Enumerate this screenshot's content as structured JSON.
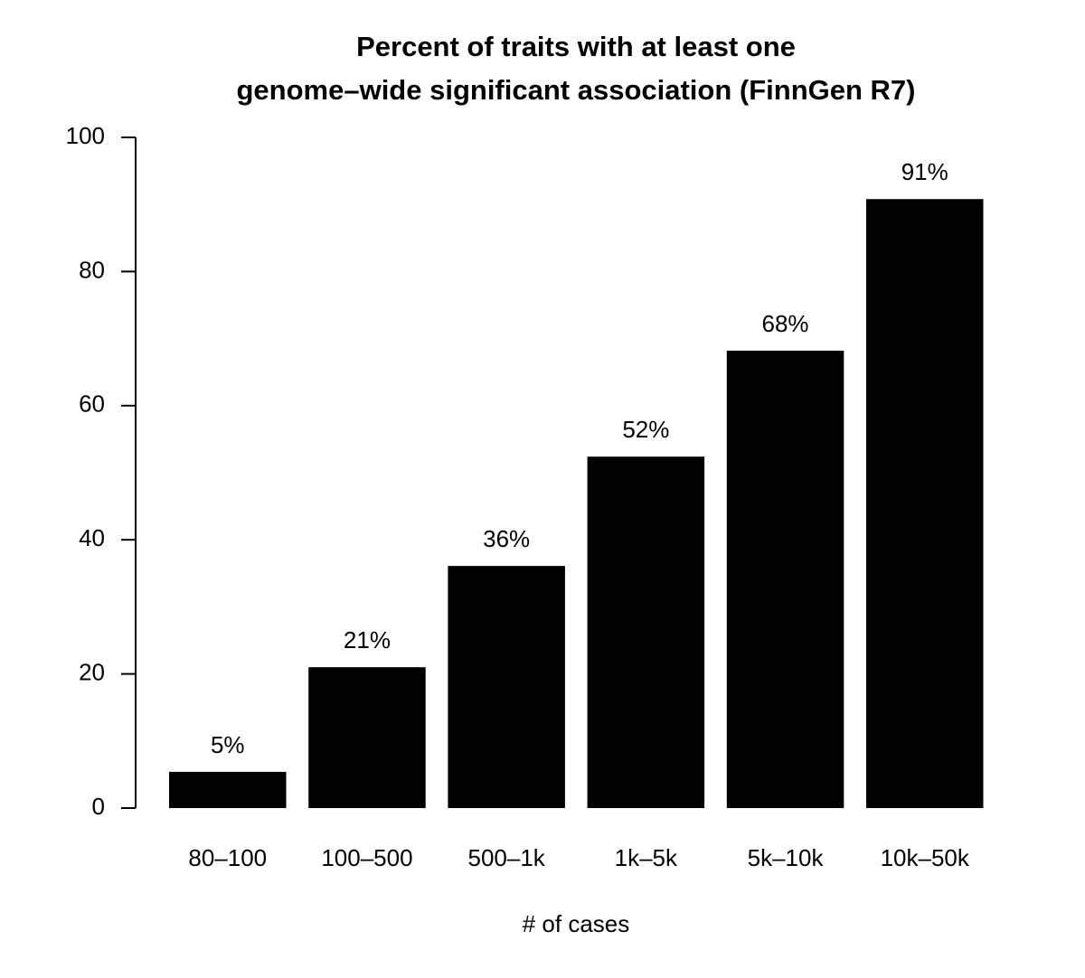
{
  "chart_data": {
    "type": "bar",
    "title": [
      "Percent of traits with at least one",
      "genome–wide significant association (FinnGen R7)"
    ],
    "xlabel": "# of cases",
    "categories": [
      "80–100",
      "100–500",
      "500–1k",
      "1k–5k",
      "5k–10k",
      "10k–50k"
    ],
    "values": [
      5.4,
      21,
      36.1,
      52.4,
      68.2,
      90.8
    ],
    "value_labels": [
      "5%",
      "21%",
      "36%",
      "52%",
      "68%",
      "91%"
    ],
    "color": "#000000",
    "ylim": [
      0,
      100
    ],
    "yticks": [
      0,
      20,
      40,
      60,
      80,
      100
    ],
    "grid": false
  }
}
